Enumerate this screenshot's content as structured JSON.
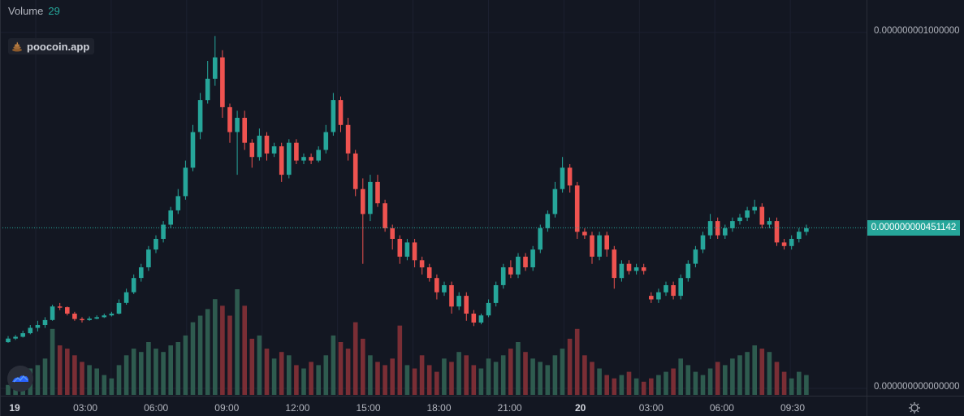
{
  "legend": {
    "label": "Volume",
    "value": "29"
  },
  "brand": {
    "text": "poocoin.app",
    "icon": "poo-icon"
  },
  "price_axis": {
    "top_label": "0.000000001000000",
    "bottom_label": "0.000000000000000",
    "last_price": "0.000000000451142"
  },
  "colors": {
    "up": "#26a69a",
    "down": "#ef5350",
    "vol_up": "#2e5b4f",
    "vol_down": "#7a2e35",
    "background": "#131722"
  },
  "chart_data": {
    "type": "candlestick",
    "title": "",
    "xlabel": "",
    "ylabel": "",
    "x_tick_labels": [
      "19",
      "03:00",
      "06:00",
      "09:00",
      "12:00",
      "15:00",
      "18:00",
      "21:00",
      "20",
      "03:00",
      "06:00",
      "09:30"
    ],
    "y_range": [
      0,
      1.05e-09
    ],
    "last_price": 4.51142e-10,
    "grid": true,
    "candles": [
      [
        1.3e-10,
        1.4e-10,
        1.47e-10,
        1.28e-10,
        3.0
      ],
      [
        1.4e-10,
        1.45e-10,
        1.5e-10,
        1.36e-10,
        4.0
      ],
      [
        1.45e-10,
        1.55e-10,
        1.62e-10,
        1.43e-10,
        5.0
      ],
      [
        1.55e-10,
        1.7e-10,
        1.78e-10,
        1.52e-10,
        8.0
      ],
      [
        1.7e-10,
        1.78e-10,
        1.9e-10,
        1.6e-10,
        9.0
      ],
      [
        1.78e-10,
        1.92e-10,
        2e-10,
        1.7e-10,
        11.0
      ],
      [
        1.92e-10,
        2.3e-10,
        2.35e-10,
        1.9e-10,
        20.0
      ],
      [
        2.3e-10,
        2.28e-10,
        2.4e-10,
        2.2e-10,
        15.0
      ],
      [
        2.28e-10,
        2.1e-10,
        2.3e-10,
        2.05e-10,
        14.0
      ],
      [
        2.1e-10,
        1.95e-10,
        2.15e-10,
        1.9e-10,
        12.0
      ],
      [
        1.95e-10,
        1.92e-10,
        2e-10,
        1.85e-10,
        10.0
      ],
      [
        1.92e-10,
        1.96e-10,
        2.02e-10,
        1.9e-10,
        9.0
      ],
      [
        1.96e-10,
        2e-10,
        2.05e-10,
        1.94e-10,
        8.0
      ],
      [
        2e-10,
        2.05e-10,
        2.1e-10,
        1.98e-10,
        6.0
      ],
      [
        2.05e-10,
        2.1e-10,
        2.15e-10,
        2.02e-10,
        5.0
      ],
      [
        2.1e-10,
        2.4e-10,
        2.5e-10,
        2.08e-10,
        9.0
      ],
      [
        2.4e-10,
        2.7e-10,
        2.8e-10,
        2.35e-10,
        12.0
      ],
      [
        2.7e-10,
        3.1e-10,
        3.2e-10,
        2.65e-10,
        14.0
      ],
      [
        3.1e-10,
        3.4e-10,
        3.5e-10,
        3e-10,
        13.0
      ],
      [
        3.4e-10,
        3.9e-10,
        4e-10,
        3.3e-10,
        16.0
      ],
      [
        3.9e-10,
        4.2e-10,
        4.3e-10,
        3.8e-10,
        14.0
      ],
      [
        4.2e-10,
        4.6e-10,
        4.7e-10,
        4.1e-10,
        13.0
      ],
      [
        4.6e-10,
        5e-10,
        5.1e-10,
        4.5e-10,
        15.0
      ],
      [
        5e-10,
        5.4e-10,
        5.6e-10,
        4.9e-10,
        16.0
      ],
      [
        5.4e-10,
        6.2e-10,
        6.4e-10,
        5.3e-10,
        18.0
      ],
      [
        6.2e-10,
        7.2e-10,
        7.4e-10,
        6.1e-10,
        22.0
      ],
      [
        7.2e-10,
        8.1e-10,
        8.3e-10,
        7e-10,
        24.0
      ],
      [
        8.1e-10,
        8.7e-10,
        9.2e-10,
        8e-10,
        26.0
      ],
      [
        8.7e-10,
        9.3e-10,
        9.9e-10,
        8.5e-10,
        29.0
      ],
      [
        9.3e-10,
        7.9e-10,
        9.5e-10,
        7.6e-10,
        27.0
      ],
      [
        7.9e-10,
        7.2e-10,
        8e-10,
        6.9e-10,
        24.0
      ],
      [
        7.2e-10,
        7.6e-10,
        7.8e-10,
        6e-10,
        32.0
      ],
      [
        7.6e-10,
        6.9e-10,
        7.8e-10,
        6.7e-10,
        27.0
      ],
      [
        6.9e-10,
        6.5e-10,
        7e-10,
        6.2e-10,
        17.0
      ],
      [
        6.5e-10,
        7.1e-10,
        7.3e-10,
        6.4e-10,
        18.0
      ],
      [
        7.1e-10,
        6.6e-10,
        7.2e-10,
        6.4e-10,
        14.0
      ],
      [
        6.6e-10,
        6.8e-10,
        6.9e-10,
        6.5e-10,
        11.0
      ],
      [
        6.8e-10,
        6e-10,
        6.9e-10,
        5.8e-10,
        13.0
      ],
      [
        6e-10,
        6.9e-10,
        7e-10,
        5.9e-10,
        12.0
      ],
      [
        6.9e-10,
        6.4e-10,
        7e-10,
        6.3e-10,
        9.0
      ],
      [
        6.4e-10,
        6.5e-10,
        6.6e-10,
        6.3e-10,
        8.0
      ],
      [
        6.5e-10,
        6.4e-10,
        6.6e-10,
        6.3e-10,
        10.0
      ],
      [
        6.4e-10,
        6.7e-10,
        6.8e-10,
        6.35e-10,
        9.0
      ],
      [
        6.7e-10,
        7.2e-10,
        7.4e-10,
        6.6e-10,
        12.0
      ],
      [
        7.2e-10,
        8.1e-10,
        8.3e-10,
        7.1e-10,
        18.0
      ],
      [
        8.1e-10,
        7.4e-10,
        8.2e-10,
        7.2e-10,
        16.0
      ],
      [
        7.4e-10,
        6.6e-10,
        7.6e-10,
        6.4e-10,
        14.0
      ],
      [
        6.6e-10,
        5.6e-10,
        6.7e-10,
        5.4e-10,
        22.0
      ],
      [
        5.6e-10,
        4.9e-10,
        5.9e-10,
        3.5e-10,
        17.0
      ],
      [
        4.9e-10,
        5.8e-10,
        6e-10,
        4.7e-10,
        12.0
      ],
      [
        5.8e-10,
        5.2e-10,
        6e-10,
        5.1e-10,
        10.0
      ],
      [
        5.2e-10,
        4.5e-10,
        5.3e-10,
        4.4e-10,
        9.0
      ],
      [
        4.5e-10,
        4.2e-10,
        4.6e-10,
        3.9e-10,
        11.0
      ],
      [
        4.2e-10,
        3.7e-10,
        4.3e-10,
        3.5e-10,
        21.0
      ],
      [
        3.7e-10,
        4.1e-10,
        4.2e-10,
        3.6e-10,
        9.0
      ],
      [
        4.1e-10,
        3.6e-10,
        4.2e-10,
        3.4e-10,
        8.0
      ],
      [
        3.6e-10,
        3.4e-10,
        3.7e-10,
        3.2e-10,
        12.0
      ],
      [
        3.4e-10,
        3.1e-10,
        3.5e-10,
        3e-10,
        9.0
      ],
      [
        3.1e-10,
        2.7e-10,
        3.2e-10,
        2.5e-10,
        7.0
      ],
      [
        2.7e-10,
        2.9e-10,
        3e-10,
        2.6e-10,
        11.0
      ],
      [
        2.9e-10,
        2.3e-10,
        3e-10,
        2.1e-10,
        10.0
      ],
      [
        2.3e-10,
        2.6e-10,
        2.7e-10,
        2.2e-10,
        13.0
      ],
      [
        2.6e-10,
        2.1e-10,
        2.7e-10,
        1.9e-10,
        12.0
      ],
      [
        2.1e-10,
        1.85e-10,
        2.2e-10,
        1.75e-10,
        9.0
      ],
      [
        1.85e-10,
        2.05e-10,
        2.1e-10,
        1.8e-10,
        8.0
      ],
      [
        2.05e-10,
        2.4e-10,
        2.5e-10,
        2e-10,
        11.0
      ],
      [
        2.4e-10,
        2.9e-10,
        3e-10,
        2.3e-10,
        10.0
      ],
      [
        2.9e-10,
        3.4e-10,
        3.5e-10,
        2.8e-10,
        12.0
      ],
      [
        3.4e-10,
        3.2e-10,
        3.6e-10,
        3.1e-10,
        14.0
      ],
      [
        3.2e-10,
        3.7e-10,
        3.8e-10,
        3.1e-10,
        16.0
      ],
      [
        3.7e-10,
        3.4e-10,
        3.8e-10,
        3.3e-10,
        13.0
      ],
      [
        3.4e-10,
        3.9e-10,
        4e-10,
        3.3e-10,
        11.0
      ],
      [
        3.9e-10,
        4.5e-10,
        4.6e-10,
        3.8e-10,
        10.0
      ],
      [
        4.5e-10,
        4.9e-10,
        5e-10,
        4.4e-10,
        9.0
      ],
      [
        4.9e-10,
        5.6e-10,
        5.8e-10,
        4.8e-10,
        12.0
      ],
      [
        5.6e-10,
        6.2e-10,
        6.5e-10,
        5.5e-10,
        14.0
      ],
      [
        6.2e-10,
        5.7e-10,
        6.3e-10,
        5.5e-10,
        17.0
      ],
      [
        5.7e-10,
        4.4e-10,
        5.8e-10,
        4.2e-10,
        20.0
      ],
      [
        4.4e-10,
        4.3e-10,
        4.5e-10,
        4.2e-10,
        12.0
      ],
      [
        4.3e-10,
        3.7e-10,
        4.4e-10,
        3.5e-10,
        10.0
      ],
      [
        3.7e-10,
        4.3e-10,
        4.4e-10,
        3.6e-10,
        8.0
      ],
      [
        4.3e-10,
        3.9e-10,
        4.4e-10,
        3.7e-10,
        6.0
      ],
      [
        3.9e-10,
        3.1e-10,
        4e-10,
        2.8e-10,
        5.0
      ],
      [
        3.1e-10,
        3.5e-10,
        3.6e-10,
        3e-10,
        6.0
      ],
      [
        3.5e-10,
        3.3e-10,
        3.6e-10,
        3.2e-10,
        7.0
      ],
      [
        3.3e-10,
        3.4e-10,
        3.5e-10,
        3.2e-10,
        5.0
      ],
      [
        3.4e-10,
        3.3e-10,
        3.5e-10,
        3.2e-10,
        4.0
      ],
      [
        2.6e-10,
        2.5e-10,
        2.7e-10,
        2.4e-10,
        5.0
      ],
      [
        2.5e-10,
        2.7e-10,
        2.8e-10,
        2.4e-10,
        6.0
      ],
      [
        2.7e-10,
        2.9e-10,
        3e-10,
        2.6e-10,
        7.0
      ],
      [
        2.9e-10,
        2.6e-10,
        3e-10,
        2.5e-10,
        8.0
      ],
      [
        2.6e-10,
        3.1e-10,
        3.2e-10,
        2.5e-10,
        11.0
      ],
      [
        3.1e-10,
        3.5e-10,
        3.6e-10,
        3e-10,
        9.0
      ],
      [
        3.5e-10,
        3.9e-10,
        4e-10,
        3.4e-10,
        7.0
      ],
      [
        3.9e-10,
        4.3e-10,
        4.4e-10,
        3.8e-10,
        6.0
      ],
      [
        4.3e-10,
        4.7e-10,
        4.9e-10,
        4.2e-10,
        8.0
      ],
      [
        4.7e-10,
        4.3e-10,
        4.8e-10,
        4.2e-10,
        10.0
      ],
      [
        4.3e-10,
        4.5e-10,
        4.6e-10,
        4.2e-10,
        9.0
      ],
      [
        4.5e-10,
        4.7e-10,
        4.8e-10,
        4.4e-10,
        11.0
      ],
      [
        4.7e-10,
        4.8e-10,
        4.9e-10,
        4.6e-10,
        12.0
      ],
      [
        4.8e-10,
        5e-10,
        5.1e-10,
        4.7e-10,
        13.0
      ],
      [
        5e-10,
        5.1e-10,
        5.3e-10,
        4.9e-10,
        15.0
      ],
      [
        5.1e-10,
        4.6e-10,
        5.2e-10,
        4.5e-10,
        14.0
      ],
      [
        4.6e-10,
        4.7e-10,
        4.8e-10,
        4.5e-10,
        13.0
      ],
      [
        4.7e-10,
        4.1e-10,
        4.8e-10,
        4e-10,
        10.0
      ],
      [
        4.1e-10,
        4e-10,
        4.2e-10,
        3.9e-10,
        7.0
      ],
      [
        4e-10,
        4.2e-10,
        4.3e-10,
        3.9e-10,
        5.0
      ],
      [
        4.2e-10,
        4.4e-10,
        4.5e-10,
        4.1e-10,
        7.0
      ],
      [
        4.4e-10,
        4.5e-10,
        4.6e-10,
        4.3e-10,
        6.0
      ]
    ]
  }
}
